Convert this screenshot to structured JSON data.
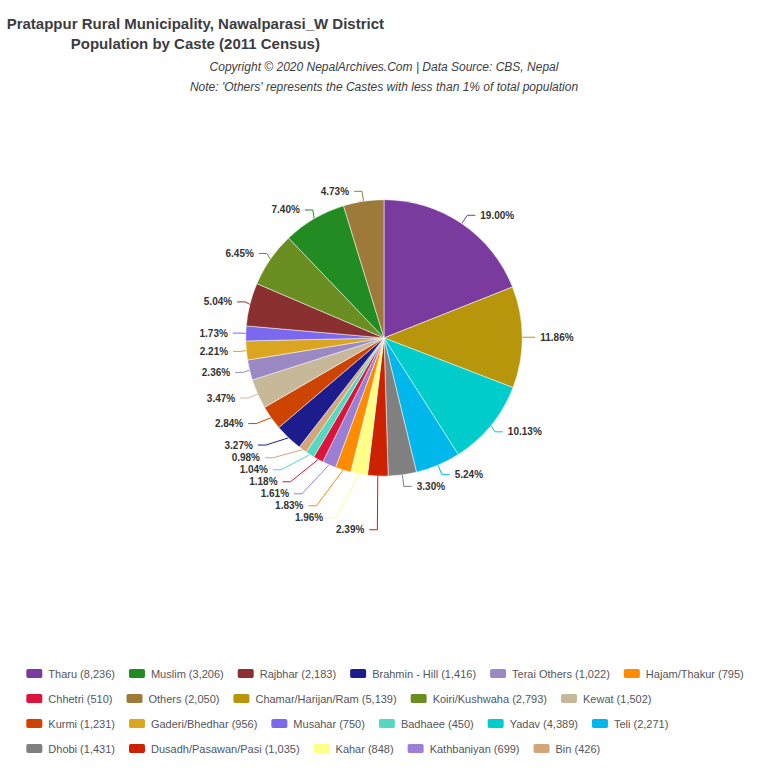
{
  "chart_data": {
    "type": "pie",
    "title": "Pratappur Rural Municipality, Nawalparasi_W District\nPopulation by Caste (2011 Census)",
    "subtitle": "Copyright © 2020 NepalArchives.Com | Data Source: CBS, Nepal",
    "note": "Note: 'Others' represents the Castes with less than 1% of total population",
    "categories": [
      "Tharu (8,236)",
      "Chamar/Harijan/Ram (5,139)",
      "Yadav (4,389)",
      "Teli (2,271)",
      "Dhobi (1,431)",
      "Dusadh/Pasawan/Pasi (1,035)",
      "Kahar (848)",
      "Hajam/Thakur (795)",
      "Kathbaniyan (699)",
      "Chhetri (510)",
      "Badhaee (450)",
      "Bin (426)",
      "Brahmin - Hill (1,416)",
      "Kurmi (1,231)",
      "Kewat (1,502)",
      "Terai Others (1,022)",
      "Gaderi/Bhedhar (956)",
      "Musahar (750)",
      "Rajbhar (2,183)",
      "Koiri/Kushwaha (2,793)",
      "Muslim (3,206)",
      "Others (2,050)"
    ],
    "values": [
      19.0,
      11.86,
      10.13,
      5.24,
      3.3,
      2.39,
      1.96,
      1.83,
      1.61,
      1.18,
      1.04,
      0.98,
      3.27,
      2.84,
      3.47,
      2.36,
      2.21,
      1.73,
      5.04,
      6.45,
      7.4,
      4.73
    ],
    "value_labels": [
      "19.00%",
      "11.86%",
      "10.13%",
      "5.24%",
      "3.30%",
      "2.39%",
      "1.96%",
      "1.83%",
      "1.61%",
      "1.18%",
      "1.04%",
      "0.98%",
      "3.27%",
      "2.84%",
      "3.47%",
      "2.36%",
      "2.21%",
      "1.73%",
      "5.04%",
      "6.45%",
      "7.40%",
      "4.73%"
    ],
    "colors": [
      "#7B3B9E",
      "#B8960C",
      "#00CCCC",
      "#00B7EB",
      "#808080",
      "#CC2200",
      "#FFFF88",
      "#FF8C00",
      "#9B7FD4",
      "#DC143C",
      "#55D8C1",
      "#D2A679",
      "#1C1C8C",
      "#CC4400",
      "#C8B89A",
      "#9B89C4",
      "#DAA520",
      "#7B68EE",
      "#8B3030",
      "#6B8E23",
      "#228B22",
      "#9E7A3A"
    ],
    "data_labels": true,
    "legend": "bottom",
    "legend_entries": [
      "Tharu (8,236)",
      "Muslim (3,206)",
      "Rajbhar (2,183)",
      "Brahmin - Hill (1,416)",
      "Terai Others (1,022)",
      "Hajam/Thakur (795)",
      "Chhetri (510)",
      "Others (2,050)",
      "Chamar/Harijan/Ram (5,139)",
      "Koiri/Kushwaha (2,793)",
      "Kewat (1,502)",
      "Kurmi (1,231)",
      "Gaderi/Bhedhar (956)",
      "Musahar (750)",
      "Badhaee (450)",
      "Yadav (4,389)",
      "Teli (2,271)",
      "Dhobi (1,431)",
      "Dusadh/Pasawan/Pasi (1,035)",
      "Kahar (848)",
      "Kathbaniyan (699)",
      "Bin (426)"
    ]
  }
}
